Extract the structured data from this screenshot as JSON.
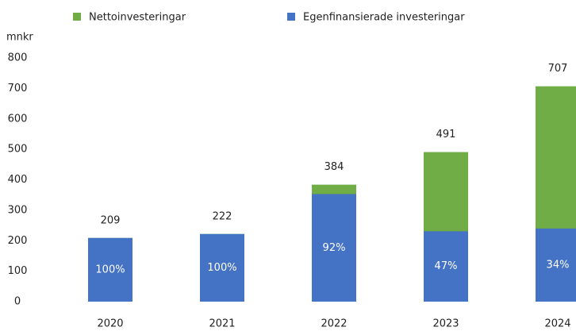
{
  "chart_data": {
    "type": "overlap-bar",
    "y_label": "mnkr",
    "categories": [
      "2020",
      "2021",
      "2022",
      "2023",
      "2024"
    ],
    "series": [
      {
        "name": "Nettoinvesteringar",
        "color": "#70ad47",
        "values": [
          209,
          222,
          384,
          491,
          707
        ]
      },
      {
        "name": "Egenfinansierade investeringar",
        "color": "#4472c4",
        "values": [
          209,
          222,
          353,
          231,
          240
        ],
        "shares": [
          "100%",
          "100%",
          "92%",
          "47%",
          "34%"
        ]
      }
    ],
    "ylim": [
      0,
      800
    ],
    "yticks": [
      0,
      100,
      200,
      300,
      400,
      500,
      600,
      700,
      800
    ],
    "grid": false
  }
}
